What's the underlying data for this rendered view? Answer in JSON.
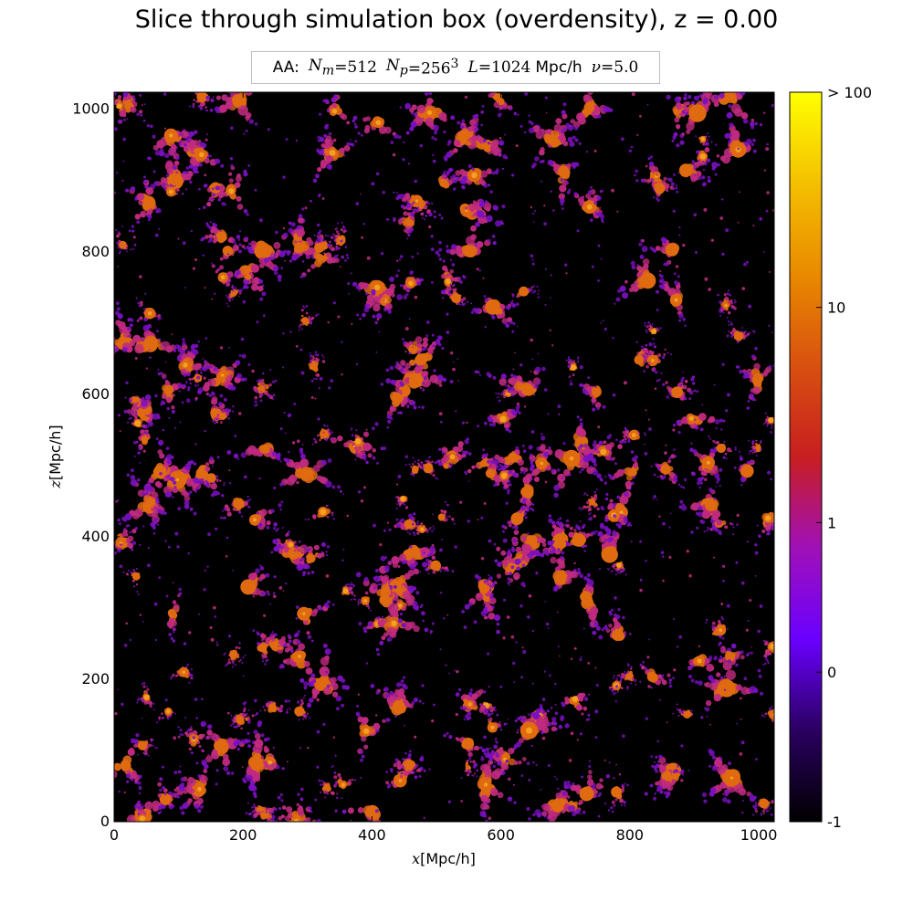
{
  "chart_data": {
    "type": "heatmap",
    "title": "Slice through simulation box (overdensity), z = 0.00",
    "annotation": {
      "prefix": "AA:",
      "nm_label": "N",
      "nm_sub": "m",
      "nm_value": "=512",
      "np_label": "N",
      "np_sub": "p",
      "np_value": "=256",
      "np_sup": "3",
      "l_label": "L",
      "l_value": "=1024",
      "l_unit": "Mpc/h",
      "nu_label": "ν",
      "nu_value": "=5.0"
    },
    "xlabel_var": "x",
    "xlabel_unit": "[Mpc/h]",
    "ylabel_var": "z",
    "ylabel_unit": "[Mpc/h]",
    "xlim": [
      0,
      1024
    ],
    "ylim": [
      0,
      1024
    ],
    "xticks": [
      0,
      200,
      400,
      600,
      800,
      1000
    ],
    "yticks": [
      0,
      200,
      400,
      600,
      800,
      1000
    ],
    "colorbar": {
      "ticks": [
        {
          "label": "-1",
          "frac": 0.0
        },
        {
          "label": "0",
          "frac": 0.205
        },
        {
          "label": "1",
          "frac": 0.41
        },
        {
          "label": "10",
          "frac": 0.705
        },
        {
          "label": "> 100",
          "frac": 1.0
        }
      ],
      "colormap": "gnuplot",
      "stops": [
        "#000000",
        "#2a0060",
        "#6a00ff",
        "#a010b8",
        "#c81e20",
        "#d85010",
        "#e98a00",
        "#f4c000",
        "#ffff00"
      ]
    },
    "field_colors": {
      "void": "#000000",
      "low": "#7a10c0",
      "mid": "#c02a80",
      "high": "#e06a10",
      "peak": "#f4a020"
    }
  }
}
